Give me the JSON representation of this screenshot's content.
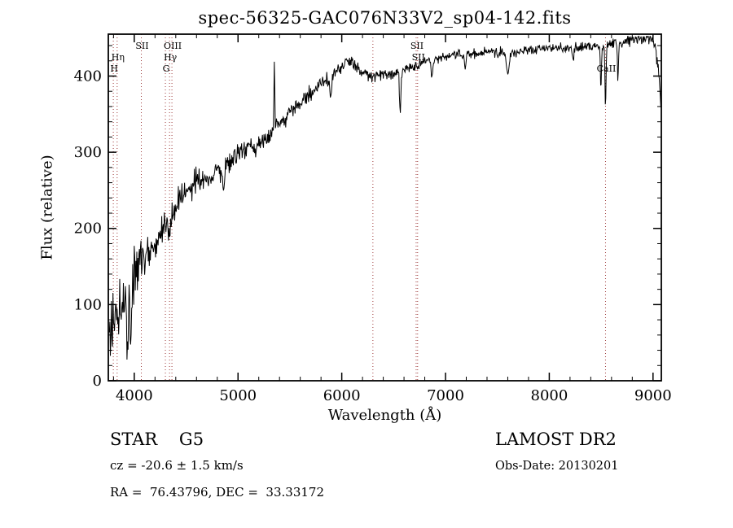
{
  "title": "spec-56325-GAC076N33V2_sp04-142.fits",
  "footer": {
    "class_label": "STAR    G5",
    "survey": "LAMOST DR2",
    "cz": "cz = -20.6 ± 1.5 km/s",
    "obs_date": "Obs-Date: 20130201",
    "coords": "RA =  76.43796, DEC =  33.33172"
  },
  "chart_data": {
    "type": "line",
    "title": "spec-56325-GAC076N33V2_sp04-142.fits",
    "xlabel": "Wavelength (Å)",
    "ylabel": "Flux (relative)",
    "xlim": [
      3750,
      9080
    ],
    "ylim": [
      0,
      455
    ],
    "xticks": [
      4000,
      5000,
      6000,
      7000,
      8000,
      9000
    ],
    "yticks": [
      0,
      100,
      200,
      300,
      400
    ],
    "x_minor_step": 200,
    "y_minor_step": 20,
    "grid": false,
    "line_color": "#000000",
    "marker_color": "#9e3a3a",
    "background": "#ffffff",
    "spectrum_anchors": {
      "x": [
        3760,
        3780,
        3800,
        3830,
        3860,
        3900,
        3930,
        3960,
        4000,
        4050,
        4100,
        4150,
        4200,
        4250,
        4300,
        4350,
        4400,
        4450,
        4500,
        4550,
        4600,
        4650,
        4700,
        4750,
        4800,
        4850,
        4900,
        4950,
        5000,
        5100,
        5200,
        5300,
        5400,
        5500,
        5600,
        5700,
        5800,
        5900,
        6000,
        6050,
        6100,
        6200,
        6300,
        6400,
        6500,
        6600,
        6700,
        6800,
        6900,
        7000,
        7100,
        7200,
        7300,
        7400,
        7500,
        7600,
        7700,
        7800,
        7900,
        8000,
        8100,
        8200,
        8300,
        8400,
        8500,
        8600,
        8700,
        8800,
        8900,
        8950,
        9000,
        9030,
        9060,
        9075
      ],
      "y": [
        70,
        60,
        85,
        95,
        100,
        108,
        100,
        102,
        130,
        158,
        172,
        168,
        182,
        195,
        205,
        215,
        230,
        240,
        246,
        254,
        260,
        265,
        268,
        272,
        276,
        272,
        288,
        294,
        300,
        308,
        315,
        322,
        338,
        352,
        365,
        378,
        392,
        398,
        412,
        420,
        415,
        405,
        398,
        404,
        402,
        408,
        414,
        418,
        422,
        426,
        428,
        428,
        430,
        432,
        430,
        428,
        432,
        434,
        436,
        438,
        436,
        437,
        438,
        440,
        438,
        440,
        444,
        448,
        450,
        452,
        448,
        430,
        395,
        358
      ]
    },
    "features": [
      {
        "x": 3933,
        "dy": -55,
        "w": 7
      },
      {
        "x": 3968,
        "dy": -45,
        "w": 7
      },
      {
        "x": 4101,
        "dy": -28,
        "w": 7
      },
      {
        "x": 4227,
        "dy": -18,
        "w": 5
      },
      {
        "x": 4340,
        "dy": -24,
        "w": 7
      },
      {
        "x": 4861,
        "dy": -28,
        "w": 7
      },
      {
        "x": 5172,
        "dy": -20,
        "w": 8
      },
      {
        "x": 5350,
        "dy": 95,
        "w": 4
      },
      {
        "x": 5893,
        "dy": -30,
        "w": 7
      },
      {
        "x": 6563,
        "dy": -55,
        "w": 6
      },
      {
        "x": 6870,
        "dy": -22,
        "w": 9
      },
      {
        "x": 7190,
        "dy": -15,
        "w": 9
      },
      {
        "x": 7600,
        "dy": -28,
        "w": 10
      },
      {
        "x": 8230,
        "dy": -18,
        "w": 8
      },
      {
        "x": 8498,
        "dy": -55,
        "w": 5
      },
      {
        "x": 8542,
        "dy": -80,
        "w": 5
      },
      {
        "x": 8662,
        "dy": -50,
        "w": 5
      }
    ],
    "noise": {
      "x": [
        3760,
        3900,
        4100,
        4400,
        4800,
        5400,
        6000,
        7000,
        8000,
        9075
      ],
      "amp": [
        24,
        18,
        13,
        9,
        7,
        5,
        4,
        3.5,
        3,
        4
      ]
    },
    "line_markers": [
      {
        "wavelength": 3798,
        "label": "H",
        "row": 3
      },
      {
        "wavelength": 3835,
        "label": "Hη",
        "row": 2
      },
      {
        "wavelength": 4068,
        "label": "SII",
        "row": 1
      },
      {
        "wavelength": 4300,
        "label": "G",
        "row": 3
      },
      {
        "wavelength": 4340,
        "label": "Hγ",
        "row": 2
      },
      {
        "wavelength": 4363,
        "label": "OIII",
        "row": 1
      },
      {
        "wavelength": 6300,
        "label": "",
        "row": 1
      },
      {
        "wavelength": 6717,
        "label": "SII",
        "row": 1
      },
      {
        "wavelength": 6731,
        "label": "SII",
        "row": 2
      },
      {
        "wavelength": 8542,
        "label": "CaII",
        "row": 3
      }
    ]
  }
}
